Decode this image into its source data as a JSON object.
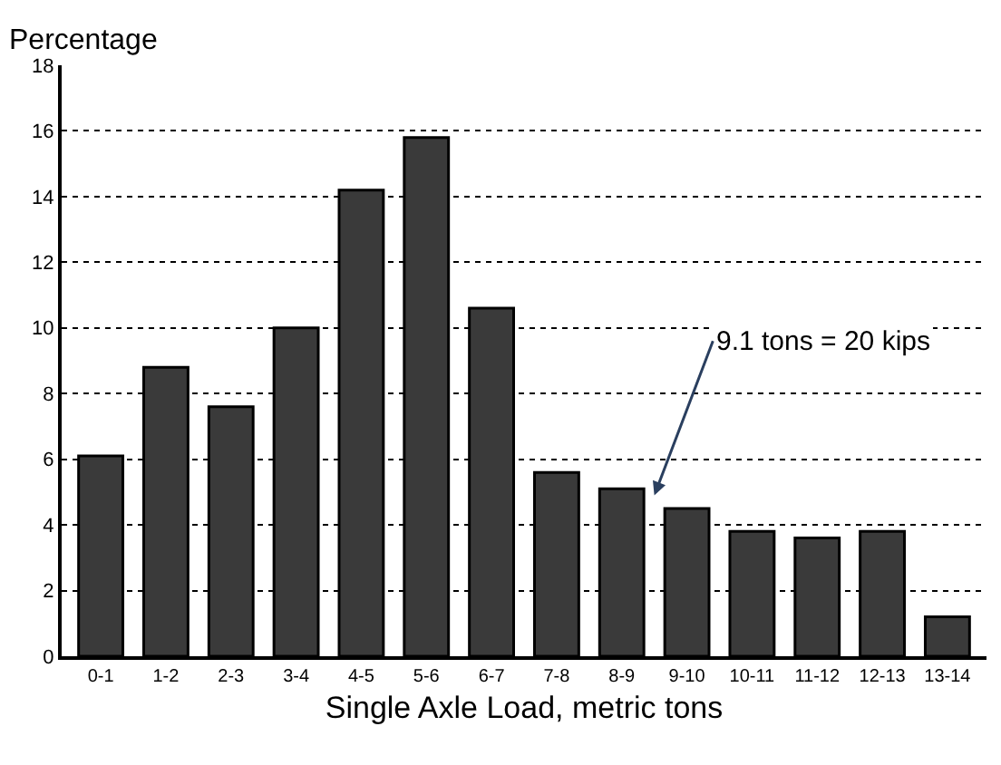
{
  "chart_data": {
    "type": "bar",
    "xlabel": "Single Axle Load, metric tons",
    "ylabel": "Percentage",
    "categories": [
      "0-1",
      "1-2",
      "2-3",
      "3-4",
      "4-5",
      "5-6",
      "6-7",
      "7-8",
      "8-9",
      "9-10",
      "10-11",
      "11-12",
      "12-13",
      "13-14"
    ],
    "values": [
      6.1,
      8.8,
      7.6,
      10.0,
      14.2,
      15.8,
      10.6,
      5.6,
      5.1,
      4.5,
      3.8,
      3.6,
      3.8,
      1.2
    ],
    "color": "#3a3a3a",
    "ylim": [
      0,
      18
    ],
    "yticks": [
      0,
      2,
      4,
      6,
      8,
      10,
      12,
      14,
      16,
      18
    ],
    "grid": "y",
    "annotations": [
      "9.1 tons = 20 kips"
    ]
  }
}
